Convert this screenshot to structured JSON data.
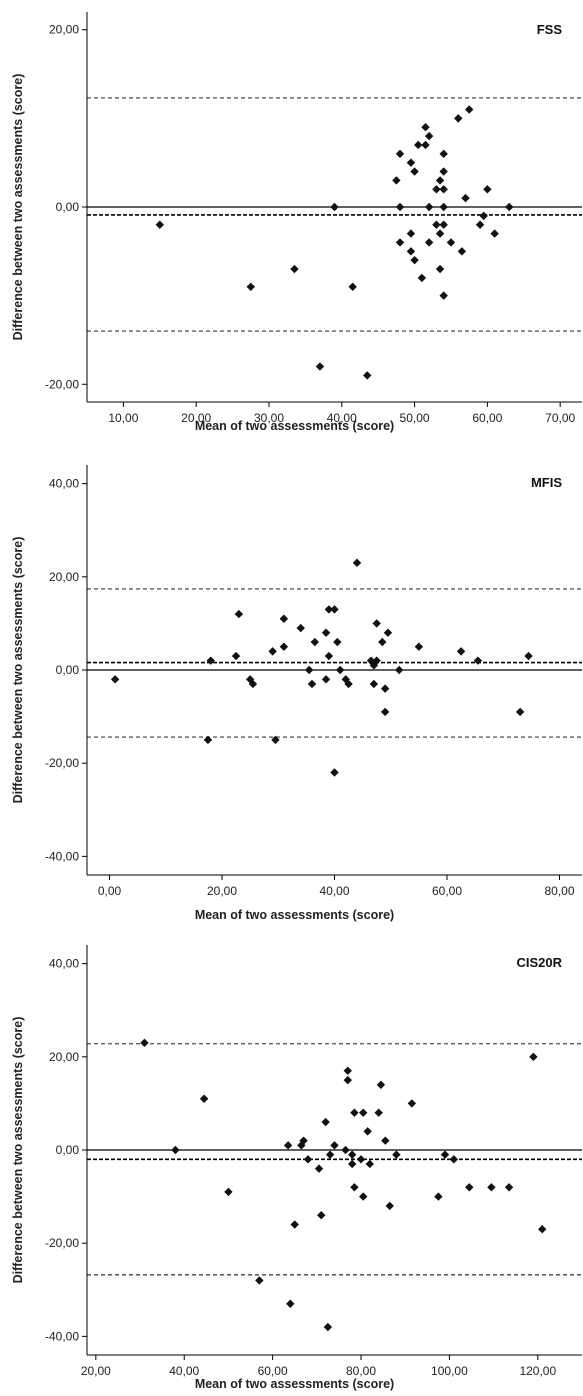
{
  "chart_data": [
    {
      "type": "scatter",
      "title": "FSS",
      "xlabel": "Mean of two assessments (score)",
      "ylabel": "Difference between two assessments (score)",
      "xlim": [
        5,
        73
      ],
      "ylim": [
        -22,
        22
      ],
      "xticks": [
        10,
        20,
        30,
        40,
        50,
        60,
        70
      ],
      "xtick_labels": [
        "10,00",
        "20,00",
        "30,00",
        "40,00",
        "50,00",
        "60,00",
        "70,00"
      ],
      "yticks": [
        -20,
        0,
        20
      ],
      "ytick_labels": [
        "-20,00",
        "0,00",
        "20,00"
      ],
      "zero_line": 0,
      "mean_difference": -0.9,
      "limits_of_agreement": [
        -14,
        12.3
      ],
      "points": [
        [
          15,
          -2
        ],
        [
          27.5,
          -9
        ],
        [
          33.5,
          -7
        ],
        [
          37,
          -18
        ],
        [
          39,
          0
        ],
        [
          41.5,
          -9
        ],
        [
          43.5,
          -19
        ],
        [
          47.5,
          3
        ],
        [
          48,
          6
        ],
        [
          48,
          0
        ],
        [
          48,
          -4
        ],
        [
          49.5,
          5
        ],
        [
          49.5,
          -3
        ],
        [
          49.5,
          -5
        ],
        [
          50,
          4
        ],
        [
          50,
          -6
        ],
        [
          50.5,
          7
        ],
        [
          51,
          -8
        ],
        [
          51.5,
          7
        ],
        [
          51.5,
          9
        ],
        [
          52,
          8
        ],
        [
          52,
          0
        ],
        [
          52,
          -4
        ],
        [
          53,
          2
        ],
        [
          53,
          -2
        ],
        [
          53.5,
          -3
        ],
        [
          53.5,
          -7
        ],
        [
          53.5,
          3
        ],
        [
          54,
          6
        ],
        [
          54,
          4
        ],
        [
          54,
          2
        ],
        [
          54,
          0
        ],
        [
          54,
          -2
        ],
        [
          54,
          -10
        ],
        [
          55,
          -4
        ],
        [
          56,
          10
        ],
        [
          56.5,
          -5
        ],
        [
          57,
          1
        ],
        [
          57.5,
          11
        ],
        [
          59,
          -2
        ],
        [
          59.5,
          -1
        ],
        [
          60,
          2
        ],
        [
          61,
          -3
        ],
        [
          63,
          0
        ]
      ]
    },
    {
      "type": "scatter",
      "title": "MFIS",
      "xlabel": "Mean of two assessments (score)",
      "ylabel": "Difference between two assessments (score)",
      "xlim": [
        -4,
        84
      ],
      "ylim": [
        -44,
        44
      ],
      "xticks": [
        0,
        20,
        40,
        60,
        80
      ],
      "xtick_labels": [
        "0,00",
        "20,00",
        "40,00",
        "60,00",
        "80,00"
      ],
      "yticks": [
        -40,
        -20,
        0,
        20,
        40
      ],
      "ytick_labels": [
        "-40,00",
        "-20,00",
        "0,00",
        "20,00",
        "40,00"
      ],
      "zero_line": 0,
      "mean_difference": 1.6,
      "limits_of_agreement": [
        -14.4,
        17.4
      ],
      "points": [
        [
          1,
          -2
        ],
        [
          17.5,
          -15
        ],
        [
          18,
          2
        ],
        [
          22.5,
          3
        ],
        [
          23,
          12
        ],
        [
          25,
          -2
        ],
        [
          25.5,
          -3
        ],
        [
          29,
          4
        ],
        [
          29.5,
          -15
        ],
        [
          31,
          11
        ],
        [
          31,
          5
        ],
        [
          34,
          9
        ],
        [
          35.5,
          0
        ],
        [
          36,
          -3
        ],
        [
          36.5,
          6
        ],
        [
          38.5,
          8
        ],
        [
          38.5,
          -2
        ],
        [
          39,
          13
        ],
        [
          39,
          3
        ],
        [
          40,
          13
        ],
        [
          40,
          -22
        ],
        [
          40.5,
          6
        ],
        [
          41,
          0
        ],
        [
          42,
          -2
        ],
        [
          42.5,
          -3
        ],
        [
          44,
          23
        ],
        [
          46.5,
          2
        ],
        [
          47,
          1
        ],
        [
          47,
          -3
        ],
        [
          47.5,
          2
        ],
        [
          47.5,
          10
        ],
        [
          48.5,
          6
        ],
        [
          49,
          -4
        ],
        [
          49,
          -9
        ],
        [
          49.5,
          8
        ],
        [
          51.5,
          0
        ],
        [
          55,
          5
        ],
        [
          62.5,
          4
        ],
        [
          65.5,
          2
        ],
        [
          73,
          -9
        ],
        [
          74.5,
          3
        ]
      ]
    },
    {
      "type": "scatter",
      "title": "CIS20R",
      "xlabel": "Mean of two assessments (score)",
      "ylabel": "Difference between two assessments (score)",
      "xlim": [
        18,
        130
      ],
      "ylim": [
        -44,
        44
      ],
      "xticks": [
        20,
        40,
        60,
        80,
        100,
        120
      ],
      "xtick_labels": [
        "20,00",
        "40,00",
        "60,00",
        "80,00",
        "100,00",
        "120,00"
      ],
      "yticks": [
        -40,
        -20,
        0,
        20,
        40
      ],
      "ytick_labels": [
        "-40,00",
        "-20,00",
        "0,00",
        "20,00",
        "40,00"
      ],
      "zero_line": 0,
      "mean_difference": -2,
      "limits_of_agreement": [
        -26.8,
        22.8
      ],
      "points": [
        [
          31,
          23
        ],
        [
          38,
          0
        ],
        [
          44.5,
          11
        ],
        [
          50,
          -9
        ],
        [
          57,
          -28
        ],
        [
          63.5,
          1
        ],
        [
          64,
          -33
        ],
        [
          65,
          -16
        ],
        [
          66.5,
          1
        ],
        [
          67,
          2
        ],
        [
          68,
          -2
        ],
        [
          70.5,
          -4
        ],
        [
          71,
          -14
        ],
        [
          72,
          6
        ],
        [
          72.5,
          -38
        ],
        [
          73,
          -1
        ],
        [
          74,
          1
        ],
        [
          76.5,
          0
        ],
        [
          77,
          17
        ],
        [
          77,
          15
        ],
        [
          78,
          -1
        ],
        [
          78,
          -3
        ],
        [
          78.5,
          8
        ],
        [
          78.5,
          -8
        ],
        [
          80,
          -2
        ],
        [
          80.5,
          8
        ],
        [
          80.5,
          -10
        ],
        [
          81.5,
          4
        ],
        [
          82,
          -3
        ],
        [
          84,
          8
        ],
        [
          84.5,
          14
        ],
        [
          85.5,
          2
        ],
        [
          86.5,
          -12
        ],
        [
          88,
          -1
        ],
        [
          91.5,
          10
        ],
        [
          97.5,
          -10
        ],
        [
          99,
          -1
        ],
        [
          101,
          -2
        ],
        [
          104.5,
          -8
        ],
        [
          109.5,
          -8
        ],
        [
          113.5,
          -8
        ],
        [
          119,
          20
        ],
        [
          121,
          -17
        ]
      ]
    }
  ]
}
